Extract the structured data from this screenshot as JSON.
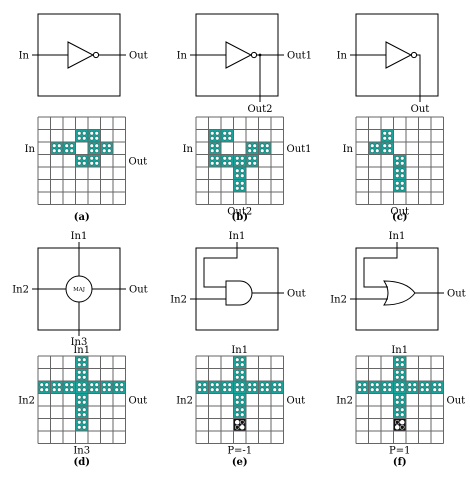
{
  "colors": {
    "cell_fill": "#1aa39a",
    "dot_fill": "#ffffff",
    "pin_cell": "#111111",
    "grid": "#666666",
    "line": "#000000"
  },
  "panels": [
    {
      "id": "a",
      "caption": "(a)",
      "gate": "not",
      "labels": {
        "in": "In",
        "out": "Out"
      },
      "grid_labels": {
        "in": "In",
        "out": "Out"
      },
      "cells": [
        [
          1,
          3
        ],
        [
          1,
          4
        ],
        [
          2,
          1
        ],
        [
          2,
          2
        ],
        [
          2,
          4
        ],
        [
          2,
          5
        ],
        [
          3,
          3
        ],
        [
          3,
          4
        ]
      ]
    },
    {
      "id": "b",
      "caption": "(b)",
      "gate": "fanout",
      "labels": {
        "in": "In",
        "out1": "Out1",
        "out2": "Out2"
      },
      "grid_labels": {
        "in": "In",
        "out1": "Out1",
        "out2": "Out2"
      },
      "cells": [
        [
          1,
          1
        ],
        [
          1,
          2
        ],
        [
          2,
          1
        ],
        [
          2,
          4
        ],
        [
          2,
          5
        ],
        [
          3,
          1
        ],
        [
          3,
          2
        ],
        [
          3,
          3
        ],
        [
          3,
          4
        ],
        [
          4,
          3
        ],
        [
          5,
          3
        ]
      ]
    },
    {
      "id": "c",
      "caption": "(c)",
      "gate": "wire",
      "labels": {
        "in": "In",
        "out": "Out"
      },
      "grid_labels": {
        "in": "In",
        "out": "Out"
      },
      "cells": [
        [
          1,
          2
        ],
        [
          2,
          1
        ],
        [
          2,
          2
        ],
        [
          3,
          3
        ],
        [
          4,
          3
        ],
        [
          5,
          3
        ]
      ]
    },
    {
      "id": "d",
      "caption": "(d)",
      "gate": "maj",
      "labels": {
        "in1": "In1",
        "in2": "In2",
        "in3": "In3",
        "out": "Out",
        "maj": "MAJ"
      },
      "grid_labels": {
        "in1": "In1",
        "in2": "In2",
        "in3": "In3",
        "out": "Out"
      },
      "cells": [
        [
          2,
          0
        ],
        [
          2,
          1
        ],
        [
          2,
          2
        ],
        [
          0,
          3
        ],
        [
          1,
          3
        ],
        [
          2,
          3
        ],
        [
          3,
          3
        ],
        [
          4,
          3
        ],
        [
          5,
          3
        ],
        [
          2,
          4
        ],
        [
          2,
          5
        ],
        [
          2,
          6
        ]
      ]
    },
    {
      "id": "e",
      "caption": "(e)",
      "gate": "and",
      "labels": {
        "in1": "In1",
        "in2": "In2",
        "out": "Out"
      },
      "grid_labels": {
        "in1": "In1",
        "in2": "In2",
        "out": "Out",
        "p": "P=-1"
      },
      "cells": [
        [
          2,
          0
        ],
        [
          2,
          1
        ],
        [
          2,
          2
        ],
        [
          0,
          3
        ],
        [
          1,
          3
        ],
        [
          2,
          3
        ],
        [
          3,
          3
        ],
        [
          4,
          3
        ],
        [
          2,
          4
        ],
        [
          2,
          5
        ],
        [
          2,
          6
        ]
      ],
      "pin_cell": [
        5,
        3
      ]
    },
    {
      "id": "f",
      "caption": "(f)",
      "gate": "or",
      "labels": {
        "in1": "In1",
        "in2": "In2",
        "out": "Out"
      },
      "grid_labels": {
        "in1": "In1",
        "in2": "In2",
        "out": "Out",
        "p": "P=1"
      },
      "cells": [
        [
          2,
          0
        ],
        [
          2,
          1
        ],
        [
          2,
          2
        ],
        [
          0,
          3
        ],
        [
          1,
          3
        ],
        [
          2,
          3
        ],
        [
          3,
          3
        ],
        [
          4,
          3
        ],
        [
          2,
          4
        ],
        [
          2,
          5
        ],
        [
          2,
          6
        ]
      ],
      "pin_cell": [
        5,
        3
      ]
    }
  ]
}
